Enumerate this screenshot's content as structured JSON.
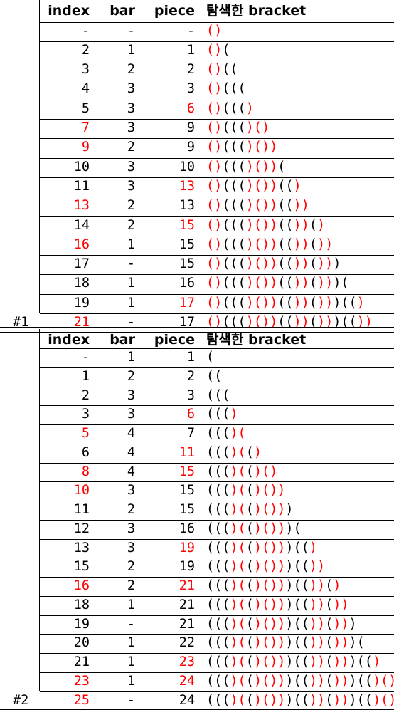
{
  "palette": {
    "text": "#000000",
    "highlight": "#ff0000"
  },
  "tables": [
    {
      "label": "#1",
      "headers": {
        "index": "index",
        "bar": "bar",
        "piece": "piece",
        "bracket": "탐색한 bracket"
      },
      "rows": [
        {
          "index": "-",
          "bar": "-",
          "piece": "-",
          "bracket": "()",
          "index_red": false,
          "piece_red": false,
          "red": [
            [
              0,
              2
            ]
          ]
        },
        {
          "index": "2",
          "bar": "1",
          "piece": "1",
          "bracket": "()(",
          "index_red": false,
          "piece_red": false,
          "red": [
            [
              0,
              2
            ]
          ]
        },
        {
          "index": "3",
          "bar": "2",
          "piece": "2",
          "bracket": "()((",
          "index_red": false,
          "piece_red": false,
          "red": [
            [
              0,
              2
            ]
          ]
        },
        {
          "index": "4",
          "bar": "3",
          "piece": "3",
          "bracket": "()(((",
          "index_red": false,
          "piece_red": false,
          "red": [
            [
              0,
              2
            ]
          ]
        },
        {
          "index": "5",
          "bar": "3",
          "piece": "6",
          "bracket": "()((((",
          "index_red": false,
          "piece_red": true,
          "red": [
            [
              0,
              2
            ],
            [
              5,
              7
            ]
          ],
          "bracket_full": "()((()"
        },
        {
          "index": "7",
          "bar": "3",
          "piece": "9",
          "bracket": "()((()()",
          "index_red": true,
          "piece_red": false,
          "red": [
            [
              0,
              2
            ],
            [
              5,
              7
            ],
            [
              7,
              9
            ]
          ]
        },
        {
          "index": "9",
          "bar": "2",
          "piece": "9",
          "bracket": "()((()())",
          "index_red": true,
          "piece_red": false,
          "red": [
            [
              0,
              2
            ],
            [
              5,
              7
            ],
            [
              7,
              9
            ]
          ]
        },
        {
          "index": "10",
          "bar": "3",
          "piece": "10",
          "bracket": "()((()())(",
          "index_red": false,
          "piece_red": false,
          "red": [
            [
              0,
              2
            ],
            [
              5,
              7
            ],
            [
              7,
              9
            ]
          ]
        },
        {
          "index": "11",
          "bar": "3",
          "piece": "13",
          "bracket": "()((()())(()",
          "index_red": false,
          "piece_red": true,
          "red": [
            [
              0,
              2
            ],
            [
              5,
              7
            ],
            [
              7,
              9
            ],
            [
              11,
              13
            ]
          ]
        },
        {
          "index": "13",
          "bar": "2",
          "piece": "13",
          "bracket": "()((()())(())",
          "index_red": true,
          "piece_red": false,
          "red": [
            [
              0,
              2
            ],
            [
              5,
              7
            ],
            [
              7,
              9
            ],
            [
              11,
              13
            ]
          ]
        },
        {
          "index": "14",
          "bar": "2",
          "piece": "15",
          "bracket": "()((()())(())()",
          "index_red": false,
          "piece_red": true,
          "red": [
            [
              0,
              2
            ],
            [
              5,
              7
            ],
            [
              7,
              9
            ],
            [
              11,
              13
            ],
            [
              14,
              16
            ]
          ]
        },
        {
          "index": "16",
          "bar": "1",
          "piece": "15",
          "bracket": "()((()())(())())",
          "index_red": true,
          "piece_red": false,
          "red": [
            [
              0,
              2
            ],
            [
              5,
              7
            ],
            [
              7,
              9
            ],
            [
              11,
              13
            ],
            [
              14,
              16
            ]
          ]
        },
        {
          "index": "17",
          "bar": "-",
          "piece": "15",
          "bracket": "()((()())(())()))",
          "index_red": false,
          "piece_red": false,
          "red": [
            [
              0,
              2
            ],
            [
              5,
              7
            ],
            [
              7,
              9
            ],
            [
              11,
              13
            ],
            [
              14,
              16
            ]
          ]
        },
        {
          "index": "18",
          "bar": "1",
          "piece": "16",
          "bracket": "()((()())(())()))(",
          "index_red": false,
          "piece_red": false,
          "red": [
            [
              0,
              2
            ],
            [
              5,
              7
            ],
            [
              7,
              9
            ],
            [
              11,
              13
            ],
            [
              14,
              16
            ]
          ]
        },
        {
          "index": "19",
          "bar": "1",
          "piece": "17",
          "bracket": "()((()())(())()))(()",
          "index_red": false,
          "piece_red": true,
          "red": [
            [
              0,
              2
            ],
            [
              5,
              7
            ],
            [
              7,
              9
            ],
            [
              11,
              13
            ],
            [
              14,
              16
            ],
            [
              19,
              21
            ]
          ]
        },
        {
          "index": "21",
          "bar": "-",
          "piece": "17",
          "bracket": "()((()())(())()))(())",
          "index_red": true,
          "piece_red": false,
          "red": [
            [
              0,
              2
            ],
            [
              5,
              7
            ],
            [
              7,
              9
            ],
            [
              11,
              13
            ],
            [
              14,
              16
            ],
            [
              19,
              21
            ]
          ]
        }
      ]
    },
    {
      "label": "#2",
      "headers": {
        "index": "index",
        "bar": "bar",
        "piece": "piece",
        "bracket": "탐색한 bracket"
      },
      "rows": [
        {
          "index": "-",
          "bar": "1",
          "piece": "1",
          "bracket": "(",
          "index_red": false,
          "piece_red": false,
          "red": []
        },
        {
          "index": "1",
          "bar": "2",
          "piece": "2",
          "bracket": "((",
          "index_red": false,
          "piece_red": false,
          "red": []
        },
        {
          "index": "2",
          "bar": "3",
          "piece": "3",
          "bracket": "(((",
          "index_red": false,
          "piece_red": false,
          "red": []
        },
        {
          "index": "3",
          "bar": "3",
          "piece": "6",
          "bracket": "((()",
          "index_red": false,
          "piece_red": true,
          "red": [
            [
              3,
              5
            ]
          ]
        },
        {
          "index": "5",
          "bar": "4",
          "piece": "7",
          "bracket": "((()(",
          "index_red": true,
          "piece_red": false,
          "red": [
            [
              3,
              5
            ]
          ]
        },
        {
          "index": "6",
          "bar": "4",
          "piece": "11",
          "bracket": "((()(()",
          "index_red": false,
          "piece_red": true,
          "red": [
            [
              3,
              5
            ],
            [
              6,
              8
            ]
          ]
        },
        {
          "index": "8",
          "bar": "4",
          "piece": "15",
          "bracket": "((()(()()",
          "index_red": true,
          "piece_red": true,
          "red": [
            [
              3,
              5
            ],
            [
              6,
              8
            ],
            [
              8,
              10
            ]
          ]
        },
        {
          "index": "10",
          "bar": "3",
          "piece": "15",
          "bracket": "((()(()())",
          "index_red": true,
          "piece_red": false,
          "red": [
            [
              3,
              5
            ],
            [
              6,
              8
            ],
            [
              8,
              10
            ]
          ]
        },
        {
          "index": "11",
          "bar": "2",
          "piece": "15",
          "bracket": "((()(()()))",
          "index_red": false,
          "piece_red": false,
          "red": [
            [
              3,
              5
            ],
            [
              6,
              8
            ],
            [
              8,
              10
            ]
          ]
        },
        {
          "index": "12",
          "bar": "3",
          "piece": "16",
          "bracket": "((()(()()))(",
          "index_red": false,
          "piece_red": false,
          "red": [
            [
              3,
              5
            ],
            [
              6,
              8
            ],
            [
              8,
              10
            ]
          ]
        },
        {
          "index": "13",
          "bar": "3",
          "piece": "19",
          "bracket": "((()(()()))(()",
          "index_red": false,
          "piece_red": true,
          "red": [
            [
              3,
              5
            ],
            [
              6,
              8
            ],
            [
              8,
              10
            ],
            [
              13,
              15
            ]
          ]
        },
        {
          "index": "15",
          "bar": "2",
          "piece": "19",
          "bracket": "((()(()()))(())",
          "index_red": false,
          "piece_red": false,
          "red": [
            [
              3,
              5
            ],
            [
              6,
              8
            ],
            [
              8,
              10
            ],
            [
              13,
              15
            ]
          ]
        },
        {
          "index": "16",
          "bar": "2",
          "piece": "21",
          "bracket": "((()(()()))(())()",
          "index_red": true,
          "piece_red": true,
          "red": [
            [
              3,
              5
            ],
            [
              6,
              8
            ],
            [
              8,
              10
            ],
            [
              13,
              15
            ],
            [
              16,
              18
            ]
          ]
        },
        {
          "index": "18",
          "bar": "1",
          "piece": "21",
          "bracket": "((()(()()))(())())",
          "index_red": false,
          "piece_red": false,
          "red": [
            [
              3,
              5
            ],
            [
              6,
              8
            ],
            [
              8,
              10
            ],
            [
              13,
              15
            ],
            [
              16,
              18
            ]
          ]
        },
        {
          "index": "19",
          "bar": "-",
          "piece": "21",
          "bracket": "((()(()()))(())()))",
          "index_red": false,
          "piece_red": false,
          "red": [
            [
              3,
              5
            ],
            [
              6,
              8
            ],
            [
              8,
              10
            ],
            [
              13,
              15
            ],
            [
              16,
              18
            ]
          ]
        },
        {
          "index": "20",
          "bar": "1",
          "piece": "22",
          "bracket": "((()(()()))(())()))(",
          "index_red": false,
          "piece_red": false,
          "red": [
            [
              3,
              5
            ],
            [
              6,
              8
            ],
            [
              8,
              10
            ],
            [
              13,
              15
            ],
            [
              16,
              18
            ]
          ]
        },
        {
          "index": "21",
          "bar": "1",
          "piece": "23",
          "bracket": "((()(()()))(())()))(()",
          "index_red": false,
          "piece_red": true,
          "red": [
            [
              3,
              5
            ],
            [
              6,
              8
            ],
            [
              8,
              10
            ],
            [
              13,
              15
            ],
            [
              16,
              18
            ],
            [
              21,
              23
            ]
          ]
        },
        {
          "index": "23",
          "bar": "1",
          "piece": "24",
          "bracket": "((()(()()))(())()))(()()",
          "index_red": true,
          "piece_red": true,
          "red": [
            [
              3,
              5
            ],
            [
              6,
              8
            ],
            [
              8,
              10
            ],
            [
              13,
              15
            ],
            [
              16,
              18
            ],
            [
              21,
              23
            ],
            [
              23,
              25
            ]
          ]
        },
        {
          "index": "25",
          "bar": "-",
          "piece": "24",
          "bracket": "((()(()()))(())()))(()())",
          "index_red": true,
          "piece_red": false,
          "red": [
            [
              3,
              5
            ],
            [
              6,
              8
            ],
            [
              8,
              10
            ],
            [
              13,
              15
            ],
            [
              16,
              18
            ],
            [
              21,
              23
            ],
            [
              23,
              25
            ]
          ]
        }
      ]
    }
  ]
}
